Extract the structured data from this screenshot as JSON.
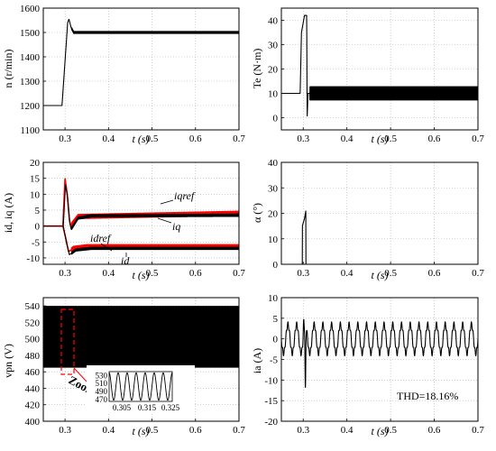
{
  "chart_data": [
    {
      "id": "speed",
      "type": "line",
      "xlabel": "t (s)",
      "ylabel": "n (r/min)",
      "xlim": [
        0.25,
        0.7
      ],
      "ylim": [
        1100,
        1600
      ],
      "xticks": [
        0.3,
        0.4,
        0.5,
        0.6,
        0.7
      ],
      "yticks": [
        1100,
        1200,
        1300,
        1400,
        1500,
        1600
      ],
      "series": [
        {
          "color": "#000000",
          "x": [
            0.25,
            0.293,
            0.303,
            0.306,
            0.309,
            0.314,
            0.32,
            0.7
          ],
          "y": [
            1200,
            1200,
            1460,
            1540,
            1555,
            1520,
            1500,
            1500
          ],
          "ripple": 7
        }
      ]
    },
    {
      "id": "torque",
      "type": "line",
      "xlabel": "t (s)",
      "ylabel": "Te (N·m)",
      "xlim": [
        0.25,
        0.7
      ],
      "ylim": [
        -5,
        45
      ],
      "xticks": [
        0.3,
        0.4,
        0.5,
        0.6,
        0.7
      ],
      "yticks": [
        0,
        10,
        20,
        30,
        40
      ],
      "series": [
        {
          "color": "#000000",
          "x": [
            0.25,
            0.293,
            0.296,
            0.303,
            0.308,
            0.309,
            0.311,
            0.313,
            0.7
          ],
          "y": [
            10,
            10,
            35,
            42,
            42,
            0,
            10,
            10,
            10
          ],
          "ripple": 4.5
        }
      ]
    },
    {
      "id": "current-dq",
      "type": "line",
      "xlabel": "t (s)",
      "ylabel": "id, iq (A)",
      "xlim": [
        0.25,
        0.7
      ],
      "ylim": [
        -12,
        20
      ],
      "xticks": [
        0.3,
        0.4,
        0.5,
        0.6,
        0.7
      ],
      "yticks": [
        -10,
        -5,
        0,
        5,
        10,
        15,
        20
      ],
      "annotations": [
        "iqref",
        "iq",
        "idref",
        "id"
      ],
      "series": [
        {
          "color": "#ff0000",
          "x": [
            0.25,
            0.295,
            0.3,
            0.305,
            0.31,
            0.313,
            0.33,
            0.7
          ],
          "y": [
            0,
            0,
            15,
            10,
            2,
            0,
            3,
            4
          ],
          "ripple": 1
        },
        {
          "color": "#000000",
          "x": [
            0.25,
            0.296,
            0.301,
            0.306,
            0.311,
            0.314,
            0.33,
            0.36,
            0.7
          ],
          "y": [
            0,
            0,
            13,
            9,
            1,
            -1,
            2.5,
            3.2,
            3.4
          ],
          "ripple": 0.6
        },
        {
          "color": "#ff0000",
          "x": [
            0.25,
            0.295,
            0.302,
            0.308,
            0.32,
            0.35,
            0.7
          ],
          "y": [
            0,
            0,
            -4,
            -8,
            -7,
            -6.5,
            -6.5
          ],
          "ripple": 1
        },
        {
          "color": "#000000",
          "x": [
            0.25,
            0.296,
            0.303,
            0.31,
            0.325,
            0.36,
            0.7
          ],
          "y": [
            0,
            0,
            -5,
            -9,
            -7.5,
            -7,
            -7
          ],
          "ripple": 0.6
        }
      ]
    },
    {
      "id": "alpha",
      "type": "line",
      "xlabel": "t (s)",
      "ylabel": "α (°)",
      "xlim": [
        0.25,
        0.7
      ],
      "ylim": [
        0,
        40
      ],
      "xticks": [
        0.3,
        0.4,
        0.5,
        0.6,
        0.7
      ],
      "yticks": [
        0,
        10,
        20,
        30,
        40
      ],
      "series": [
        {
          "color": "#000000",
          "x": [
            0.25,
            0.298,
            0.298,
            0.303,
            0.306,
            0.306,
            0.7
          ],
          "y": [
            0,
            0,
            15,
            18,
            21,
            0,
            0
          ]
        }
      ]
    },
    {
      "id": "dc-voltage",
      "type": "area",
      "xlabel": "t (s)",
      "ylabel": "vpn (V)",
      "xlim": [
        0.25,
        0.7
      ],
      "ylim": [
        400,
        550
      ],
      "xticks": [
        0.3,
        0.4,
        0.5,
        0.6,
        0.7
      ],
      "yticks": [
        400,
        420,
        440,
        460,
        480,
        500,
        520,
        540
      ],
      "band": [
        465,
        540
      ],
      "zoom": {
        "label": "Zoom",
        "window": [
          0.297,
          0.307
        ],
        "xlim": [
          0.3,
          0.325
        ],
        "ylim": [
          465,
          540
        ],
        "xticks": [
          0.305,
          0.315,
          0.325
        ],
        "xtick_labels": [
          "0.305",
          "0.315",
          "0.325"
        ],
        "yticks": [
          470,
          490,
          510,
          530
        ],
        "ytick_labels": [
          "470",
          "490",
          "510",
          "530"
        ],
        "cycles": 7
      }
    },
    {
      "id": "phase-current",
      "type": "line",
      "xlabel": "t (s)",
      "ylabel": "ia (A)",
      "xlim": [
        0.25,
        0.7
      ],
      "ylim": [
        -20,
        10
      ],
      "xticks": [
        0.3,
        0.4,
        0.5,
        0.6,
        0.7
      ],
      "yticks": [
        -20,
        -15,
        -10,
        -5,
        0,
        5,
        10
      ],
      "annotation": "THD=18.16%",
      "signal": {
        "amplitude": 3.5,
        "frequency": 50,
        "spike_t": 0.305,
        "spike_min": -16,
        "spike_max": 6
      }
    }
  ]
}
